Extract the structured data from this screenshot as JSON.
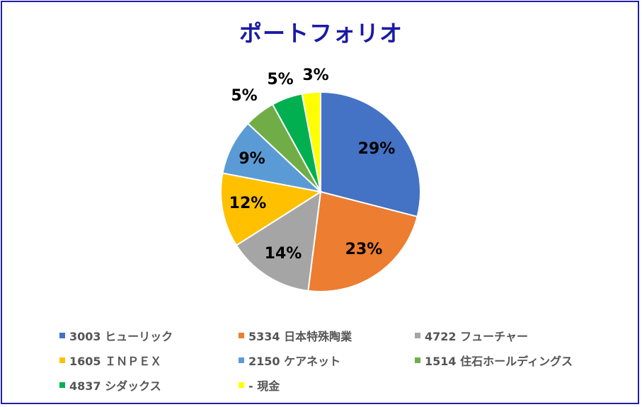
{
  "chart_data": {
    "type": "pie",
    "title": "ポートフォリオ",
    "slices": [
      {
        "name": "3003 ヒューリック",
        "value": 29,
        "label": "29%",
        "color": "#4472C4"
      },
      {
        "name": "5334 日本特殊陶業",
        "value": 23,
        "label": "23%",
        "color": "#ED7D31"
      },
      {
        "name": "4722 フューチャー",
        "value": 14,
        "label": "14%",
        "color": "#A5A5A5"
      },
      {
        "name": "1605 ＩＮＰＥＸ",
        "value": 12,
        "label": "12%",
        "color": "#FFC000"
      },
      {
        "name": "2150 ケアネット",
        "value": 9,
        "label": "9%",
        "color": "#5B9BD5"
      },
      {
        "name": "1514 住石ホールディングス",
        "value": 5,
        "label": "5%",
        "color": "#70AD47"
      },
      {
        "name": "4837 シダックス",
        "value": 5,
        "label": "5%",
        "color": "#00B050"
      },
      {
        "name": "- 現金",
        "value": 3,
        "label": "3%",
        "color": "#FFFF00"
      }
    ],
    "legend_position": "bottom"
  }
}
